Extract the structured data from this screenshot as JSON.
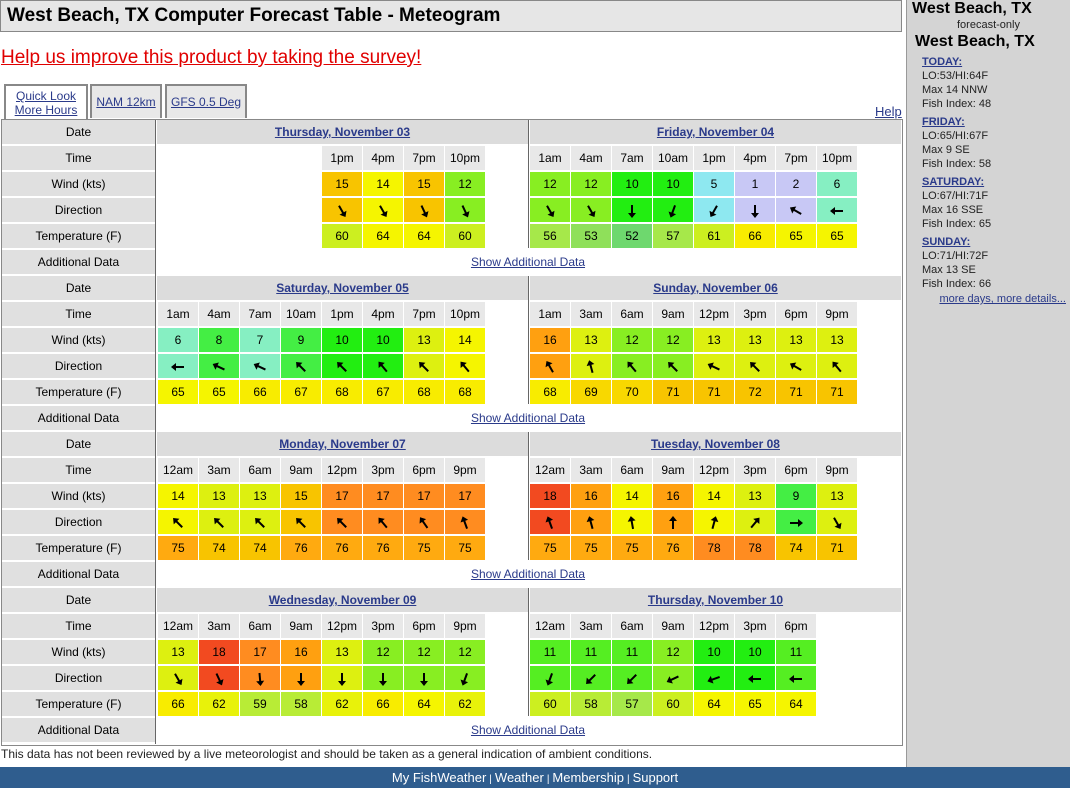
{
  "page": {
    "title": "West Beach, TX Computer Forecast Table - Meteogram",
    "survey_link": "Help us improve this product by taking the survey!",
    "tabs": [
      {
        "label_1": "Quick Look",
        "label_2": "More Hours",
        "active": true
      },
      {
        "label_1": "NAM 12km",
        "label_2": "",
        "active": false
      },
      {
        "label_1": "GFS 0.5 Deg",
        "label_2": "",
        "active": false
      }
    ],
    "help": "Help",
    "disclaimer": "This data has not been reviewed by a live meteorologist and should be taken as a general indication of ambient conditions."
  },
  "row_labels": {
    "date": "Date",
    "time": "Time",
    "wind": "Wind (kts)",
    "direction": "Direction",
    "temperature": "Temperature (F)",
    "additional": "Additional Data"
  },
  "show_additional": "Show Additional Data",
  "blocks": [
    {
      "days": [
        {
          "name": "Thursday, November 03",
          "offset": 4,
          "cols": [
            {
              "t": "1pm",
              "w": 15,
              "d": 150,
              "temp": 60
            },
            {
              "t": "4pm",
              "w": 14,
              "d": 150,
              "temp": 64
            },
            {
              "t": "7pm",
              "w": 15,
              "d": 155,
              "temp": 64
            },
            {
              "t": "10pm",
              "w": 12,
              "d": 155,
              "temp": 60
            }
          ]
        },
        {
          "name": "Friday, November 04",
          "offset": 0,
          "cols": [
            {
              "t": "1am",
              "w": 12,
              "d": 150,
              "temp": 56
            },
            {
              "t": "4am",
              "w": 12,
              "d": 150,
              "temp": 53
            },
            {
              "t": "7am",
              "w": 10,
              "d": 180,
              "temp": 52
            },
            {
              "t": "10am",
              "w": 10,
              "d": 200,
              "temp": 57
            },
            {
              "t": "1pm",
              "w": 5,
              "d": 210,
              "temp": 61
            },
            {
              "t": "4pm",
              "w": 1,
              "d": 180,
              "temp": 66
            },
            {
              "t": "7pm",
              "w": 2,
              "d": 300,
              "temp": 65
            },
            {
              "t": "10pm",
              "w": 6,
              "d": 270,
              "temp": 65
            }
          ]
        }
      ]
    },
    {
      "days": [
        {
          "name": "Saturday, November 05",
          "offset": 0,
          "cols": [
            {
              "t": "1am",
              "w": 6,
              "d": 270,
              "temp": 65
            },
            {
              "t": "4am",
              "w": 8,
              "d": 295,
              "temp": 65
            },
            {
              "t": "7am",
              "w": 7,
              "d": 295,
              "temp": 66
            },
            {
              "t": "10am",
              "w": 9,
              "d": 315,
              "temp": 67
            },
            {
              "t": "1pm",
              "w": 10,
              "d": 315,
              "temp": 68
            },
            {
              "t": "4pm",
              "w": 10,
              "d": 320,
              "temp": 67
            },
            {
              "t": "7pm",
              "w": 13,
              "d": 315,
              "temp": 68
            },
            {
              "t": "10pm",
              "w": 14,
              "d": 320,
              "temp": 68
            }
          ]
        },
        {
          "name": "Sunday, November 06",
          "offset": 0,
          "cols": [
            {
              "t": "1am",
              "w": 16,
              "d": 330,
              "temp": 68
            },
            {
              "t": "3am",
              "w": 13,
              "d": 345,
              "temp": 69
            },
            {
              "t": "6am",
              "w": 12,
              "d": 320,
              "temp": 70
            },
            {
              "t": "9am",
              "w": 12,
              "d": 315,
              "temp": 71
            },
            {
              "t": "12pm",
              "w": 13,
              "d": 295,
              "temp": 71
            },
            {
              "t": "3pm",
              "w": 13,
              "d": 315,
              "temp": 72
            },
            {
              "t": "6pm",
              "w": 13,
              "d": 300,
              "temp": 71
            },
            {
              "t": "9pm",
              "w": 13,
              "d": 320,
              "temp": 71
            }
          ]
        }
      ]
    },
    {
      "days": [
        {
          "name": "Monday, November 07",
          "offset": 0,
          "cols": [
            {
              "t": "12am",
              "w": 14,
              "d": 315,
              "temp": 75
            },
            {
              "t": "3am",
              "w": 13,
              "d": 315,
              "temp": 74
            },
            {
              "t": "6am",
              "w": 13,
              "d": 315,
              "temp": 74
            },
            {
              "t": "9am",
              "w": 15,
              "d": 315,
              "temp": 76
            },
            {
              "t": "12pm",
              "w": 17,
              "d": 315,
              "temp": 76
            },
            {
              "t": "3pm",
              "w": 17,
              "d": 320,
              "temp": 76
            },
            {
              "t": "6pm",
              "w": 17,
              "d": 325,
              "temp": 75
            },
            {
              "t": "9pm",
              "w": 17,
              "d": 340,
              "temp": 75
            }
          ]
        },
        {
          "name": "Tuesday, November 08",
          "offset": 0,
          "cols": [
            {
              "t": "12am",
              "w": 18,
              "d": 340,
              "temp": 75
            },
            {
              "t": "3am",
              "w": 16,
              "d": 345,
              "temp": 75
            },
            {
              "t": "6am",
              "w": 14,
              "d": 350,
              "temp": 75
            },
            {
              "t": "9am",
              "w": 16,
              "d": 0,
              "temp": 76
            },
            {
              "t": "12pm",
              "w": 14,
              "d": 15,
              "temp": 78
            },
            {
              "t": "3pm",
              "w": 13,
              "d": 40,
              "temp": 78
            },
            {
              "t": "6pm",
              "w": 9,
              "d": 90,
              "temp": 74
            },
            {
              "t": "9pm",
              "w": 13,
              "d": 150,
              "temp": 71
            }
          ]
        }
      ]
    },
    {
      "days": [
        {
          "name": "Wednesday, November 09",
          "offset": 0,
          "cols": [
            {
              "t": "12am",
              "w": 13,
              "d": 150,
              "temp": 66
            },
            {
              "t": "3am",
              "w": 18,
              "d": 155,
              "temp": 62
            },
            {
              "t": "6am",
              "w": 17,
              "d": 175,
              "temp": 59
            },
            {
              "t": "9am",
              "w": 16,
              "d": 180,
              "temp": 58
            },
            {
              "t": "12pm",
              "w": 13,
              "d": 180,
              "temp": 62
            },
            {
              "t": "3pm",
              "w": 12,
              "d": 180,
              "temp": 66
            },
            {
              "t": "6pm",
              "w": 12,
              "d": 180,
              "temp": 64
            },
            {
              "t": "9pm",
              "w": 12,
              "d": 200,
              "temp": 62
            }
          ]
        },
        {
          "name": "Thursday, November 10",
          "offset": 0,
          "cols": [
            {
              "t": "12am",
              "w": 11,
              "d": 200,
              "temp": 60
            },
            {
              "t": "3am",
              "w": 11,
              "d": 225,
              "temp": 58
            },
            {
              "t": "6am",
              "w": 11,
              "d": 225,
              "temp": 57
            },
            {
              "t": "9am",
              "w": 12,
              "d": 245,
              "temp": 60
            },
            {
              "t": "12pm",
              "w": 10,
              "d": 250,
              "temp": 64
            },
            {
              "t": "3pm",
              "w": 10,
              "d": 270,
              "temp": 65
            },
            {
              "t": "6pm",
              "w": 11,
              "d": 270,
              "temp": 64
            }
          ]
        }
      ]
    }
  ],
  "sidebar": {
    "location": "West Beach, TX",
    "subtitle": "forecast-only",
    "location2": "West Beach, TX",
    "days": [
      {
        "name": "TODAY:",
        "temps": "LO:53/HI:64F",
        "wind": "Max 14 NNW",
        "fish": "Fish Index: 48"
      },
      {
        "name": "FRIDAY:",
        "temps": "LO:65/HI:67F",
        "wind": "Max 9 SE",
        "fish": "Fish Index: 58"
      },
      {
        "name": "SATURDAY:",
        "temps": "LO:67/HI:71F",
        "wind": "Max 16 SSE",
        "fish": "Fish Index: 65"
      },
      {
        "name": "SUNDAY:",
        "temps": "LO:71/HI:72F",
        "wind": "Max 13 SE",
        "fish": "Fish Index: 66"
      }
    ],
    "more": "more days, more details..."
  },
  "footer": {
    "links": [
      "My FishWeather",
      "Weather",
      "Membership",
      "Support"
    ],
    "sep": "|"
  }
}
